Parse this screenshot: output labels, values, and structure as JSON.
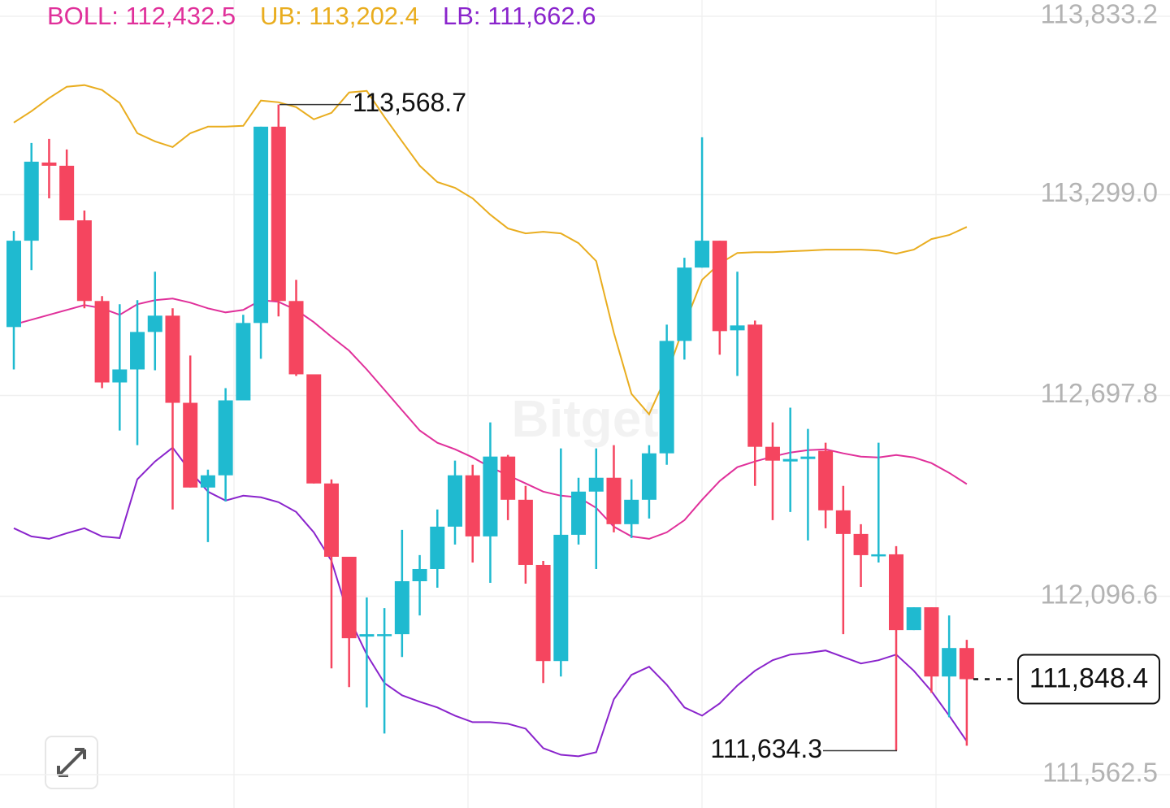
{
  "chart_data": {
    "type": "candlestick",
    "watermark": "Bitget",
    "ylim": [
      111562.5,
      113833.2
    ],
    "yticks": [
      {
        "value": 113833.2,
        "label": "113,833.2"
      },
      {
        "value": 113299.0,
        "label": "113,299.0"
      },
      {
        "value": 112697.8,
        "label": "112,697.8"
      },
      {
        "value": 112096.6,
        "label": "112,096.6"
      },
      {
        "value": 111562.5,
        "label": "111,562.5"
      }
    ],
    "grid": true,
    "up_color": "#1fbad0",
    "down_color": "#f5455f",
    "ohlc": {
      "open": [
        112902.7,
        113161.2,
        113395.3,
        113385.6,
        113222.2,
        112980.7,
        112736.8,
        112775.8,
        112888.0,
        112936.8,
        112675.9,
        112422.2,
        112458.8,
        112683.2,
        112914.9,
        113502.6,
        112980.7,
        112761.2,
        112434.4,
        112214.9,
        111975.9,
        111978.3,
        111983.2,
        112141.7,
        112178.3,
        112305.1,
        112458.8,
        112275.9,
        112514.9,
        112385.6,
        112190.5,
        111902.7,
        112280.7,
        112410.0,
        112451.5,
        112312.5,
        112385.6,
        112524.6,
        112861.2,
        113080.7,
        113161.2,
        112892.9,
        112910.0,
        112544.1,
        112500.2,
        112507.6,
        112532.0,
        112353.9,
        112283.2,
        112217.3,
        112222.2,
        111995.4,
        112063.7,
        111856.4,
        111941.7
      ],
      "high": [
        113190.5,
        113453.9,
        113466.1,
        113434.3,
        113251.4,
        112995.3,
        112971.0,
        112983.2,
        113068.5,
        112958.8,
        112817.3,
        112475.9,
        112719.7,
        112939.3,
        113502.6,
        113568.7,
        113044.1,
        112761.2,
        112446.6,
        112214.9,
        112093.0,
        112061.2,
        112295.4,
        112219.8,
        112356.4,
        112502.7,
        112490.5,
        112617.3,
        112519.8,
        112427.1,
        112202.7,
        112539.3,
        112451.5,
        112539.3,
        112549.0,
        112446.6,
        112549.0,
        112910.0,
        113110.0,
        113470.9,
        113161.2,
        113068.5,
        112922.2,
        112617.3,
        112661.2,
        112597.8,
        112556.3,
        112427.1,
        112312.5,
        112556.3,
        112246.6,
        112063.7,
        112063.7,
        112039.3,
        111966.1
      ],
      "low": [
        112775.8,
        113073.4,
        113288.0,
        113222.2,
        112958.8,
        112719.7,
        112592.9,
        112549.0,
        112773.4,
        112356.4,
        112422.2,
        112258.8,
        112380.7,
        112683.2,
        112807.6,
        112934.4,
        112756.3,
        112434.4,
        111880.8,
        111824.7,
        111763.7,
        111685.7,
        111914.9,
        112039.3,
        112122.2,
        112251.5,
        112197.8,
        112136.9,
        112324.6,
        112134.4,
        111836.9,
        111856.4,
        112251.5,
        112178.3,
        112288.1,
        112271.0,
        112329.5,
        112490.5,
        112805.1,
        113080.7,
        112819.7,
        112756.3,
        112427.1,
        112324.6,
        112349.0,
        112263.7,
        112300.3,
        111983.2,
        112124.7,
        112197.8,
        111634.3,
        111995.4,
        111807.6,
        111734.4,
        111649.1
      ],
      "close": [
        113161.2,
        113397.8,
        113385.6,
        113222.2,
        112980.7,
        112736.8,
        112775.8,
        112888.0,
        112936.8,
        112675.9,
        112422.2,
        112458.8,
        112683.2,
        112914.9,
        113502.6,
        112980.7,
        112761.2,
        112434.4,
        112214.9,
        111971.0,
        111983.2,
        111983.2,
        112141.7,
        112178.3,
        112305.1,
        112458.8,
        112275.9,
        112514.9,
        112385.6,
        112190.5,
        111902.7,
        112280.7,
        112410.0,
        112451.5,
        112312.5,
        112385.6,
        112524.6,
        112861.2,
        113080.7,
        113161.2,
        112890.5,
        112907.5,
        112544.1,
        112502.7,
        112507.6,
        112514.9,
        112353.9,
        112283.2,
        112219.8,
        112222.2,
        111995.4,
        112063.7,
        111856.4,
        111941.7,
        111848.4
      ]
    },
    "bands": [
      {
        "legend_label": "BOLL: 112,432.5",
        "color": "#e0309a",
        "values": [
          112910.0,
          112924.6,
          112939.3,
          112953.9,
          112968.5,
          112958.8,
          112939.3,
          112971.0,
          112983.2,
          112988.0,
          112975.8,
          112958.8,
          112946.6,
          112953.9,
          112983.2,
          112978.3,
          112953.9,
          112917.3,
          112873.4,
          112831.9,
          112775.8,
          112714.9,
          112653.9,
          112592.9,
          112556.3,
          112536.8,
          112512.4,
          112483.2,
          112458.8,
          112434.4,
          112410.0,
          112397.8,
          112392.9,
          112361.2,
          112305.1,
          112275.9,
          112268.6,
          112288.1,
          112324.6,
          112385.6,
          112441.7,
          112483.2,
          112500.2,
          112514.9,
          112527.1,
          112534.4,
          112536.8,
          112524.6,
          112514.9,
          112512.4,
          112519.8,
          112512.4,
          112495.4,
          112466.1,
          112432.5
        ]
      },
      {
        "legend_label": "UB: 113,202.4",
        "color": "#e9ad1f",
        "values": [
          113514.8,
          113549.0,
          113588.0,
          113622.1,
          113627.0,
          113612.4,
          113573.4,
          113483.1,
          113458.7,
          113441.7,
          113483.1,
          113502.6,
          113502.6,
          113505.1,
          113580.7,
          113575.8,
          113561.2,
          113524.6,
          113544.1,
          113605.1,
          113609.9,
          113531.9,
          113458.7,
          113385.6,
          113336.8,
          113319.7,
          113288.0,
          113239.2,
          113197.8,
          113183.1,
          113188.0,
          113183.1,
          113153.9,
          113100.2,
          112885.6,
          112702.7,
          112641.7,
          112758.8,
          112910.0,
          113044.1,
          113092.9,
          113124.6,
          113127.0,
          113127.0,
          113129.5,
          113131.9,
          113134.4,
          113134.4,
          113134.4,
          113131.9,
          113122.2,
          113134.4,
          113166.1,
          113178.3,
          113202.4
        ]
      },
      {
        "legend_label": "LB: 111,662.6",
        "color": "#8a24cc",
        "values": [
          112300.3,
          112275.9,
          112268.6,
          112285.6,
          112300.3,
          112275.9,
          112271.0,
          112446.6,
          112500.2,
          112541.7,
          112471.0,
          112410.0,
          112383.2,
          112397.8,
          112392.9,
          112378.3,
          112349.0,
          112288.1,
          112202.7,
          112032.0,
          111922.2,
          111836.9,
          111800.3,
          111780.8,
          111763.7,
          111739.3,
          111719.8,
          111719.8,
          111714.9,
          111700.3,
          111641.8,
          111622.2,
          111617.4,
          111629.6,
          111788.1,
          111861.3,
          111885.6,
          111832.0,
          111763.7,
          111739.3,
          111775.9,
          111829.6,
          111873.5,
          111905.2,
          111922.2,
          111927.1,
          111934.4,
          111914.9,
          111895.4,
          111905.2,
          111922.2,
          111873.5,
          111812.5,
          111739.3,
          111662.6
        ]
      }
    ],
    "annotations": [
      {
        "label": "113,568.7",
        "value": 113568.7
      },
      {
        "label": "111,634.3",
        "value": 111634.3
      }
    ],
    "last_price": {
      "label": "111,848.4",
      "value": 111848.4
    }
  }
}
